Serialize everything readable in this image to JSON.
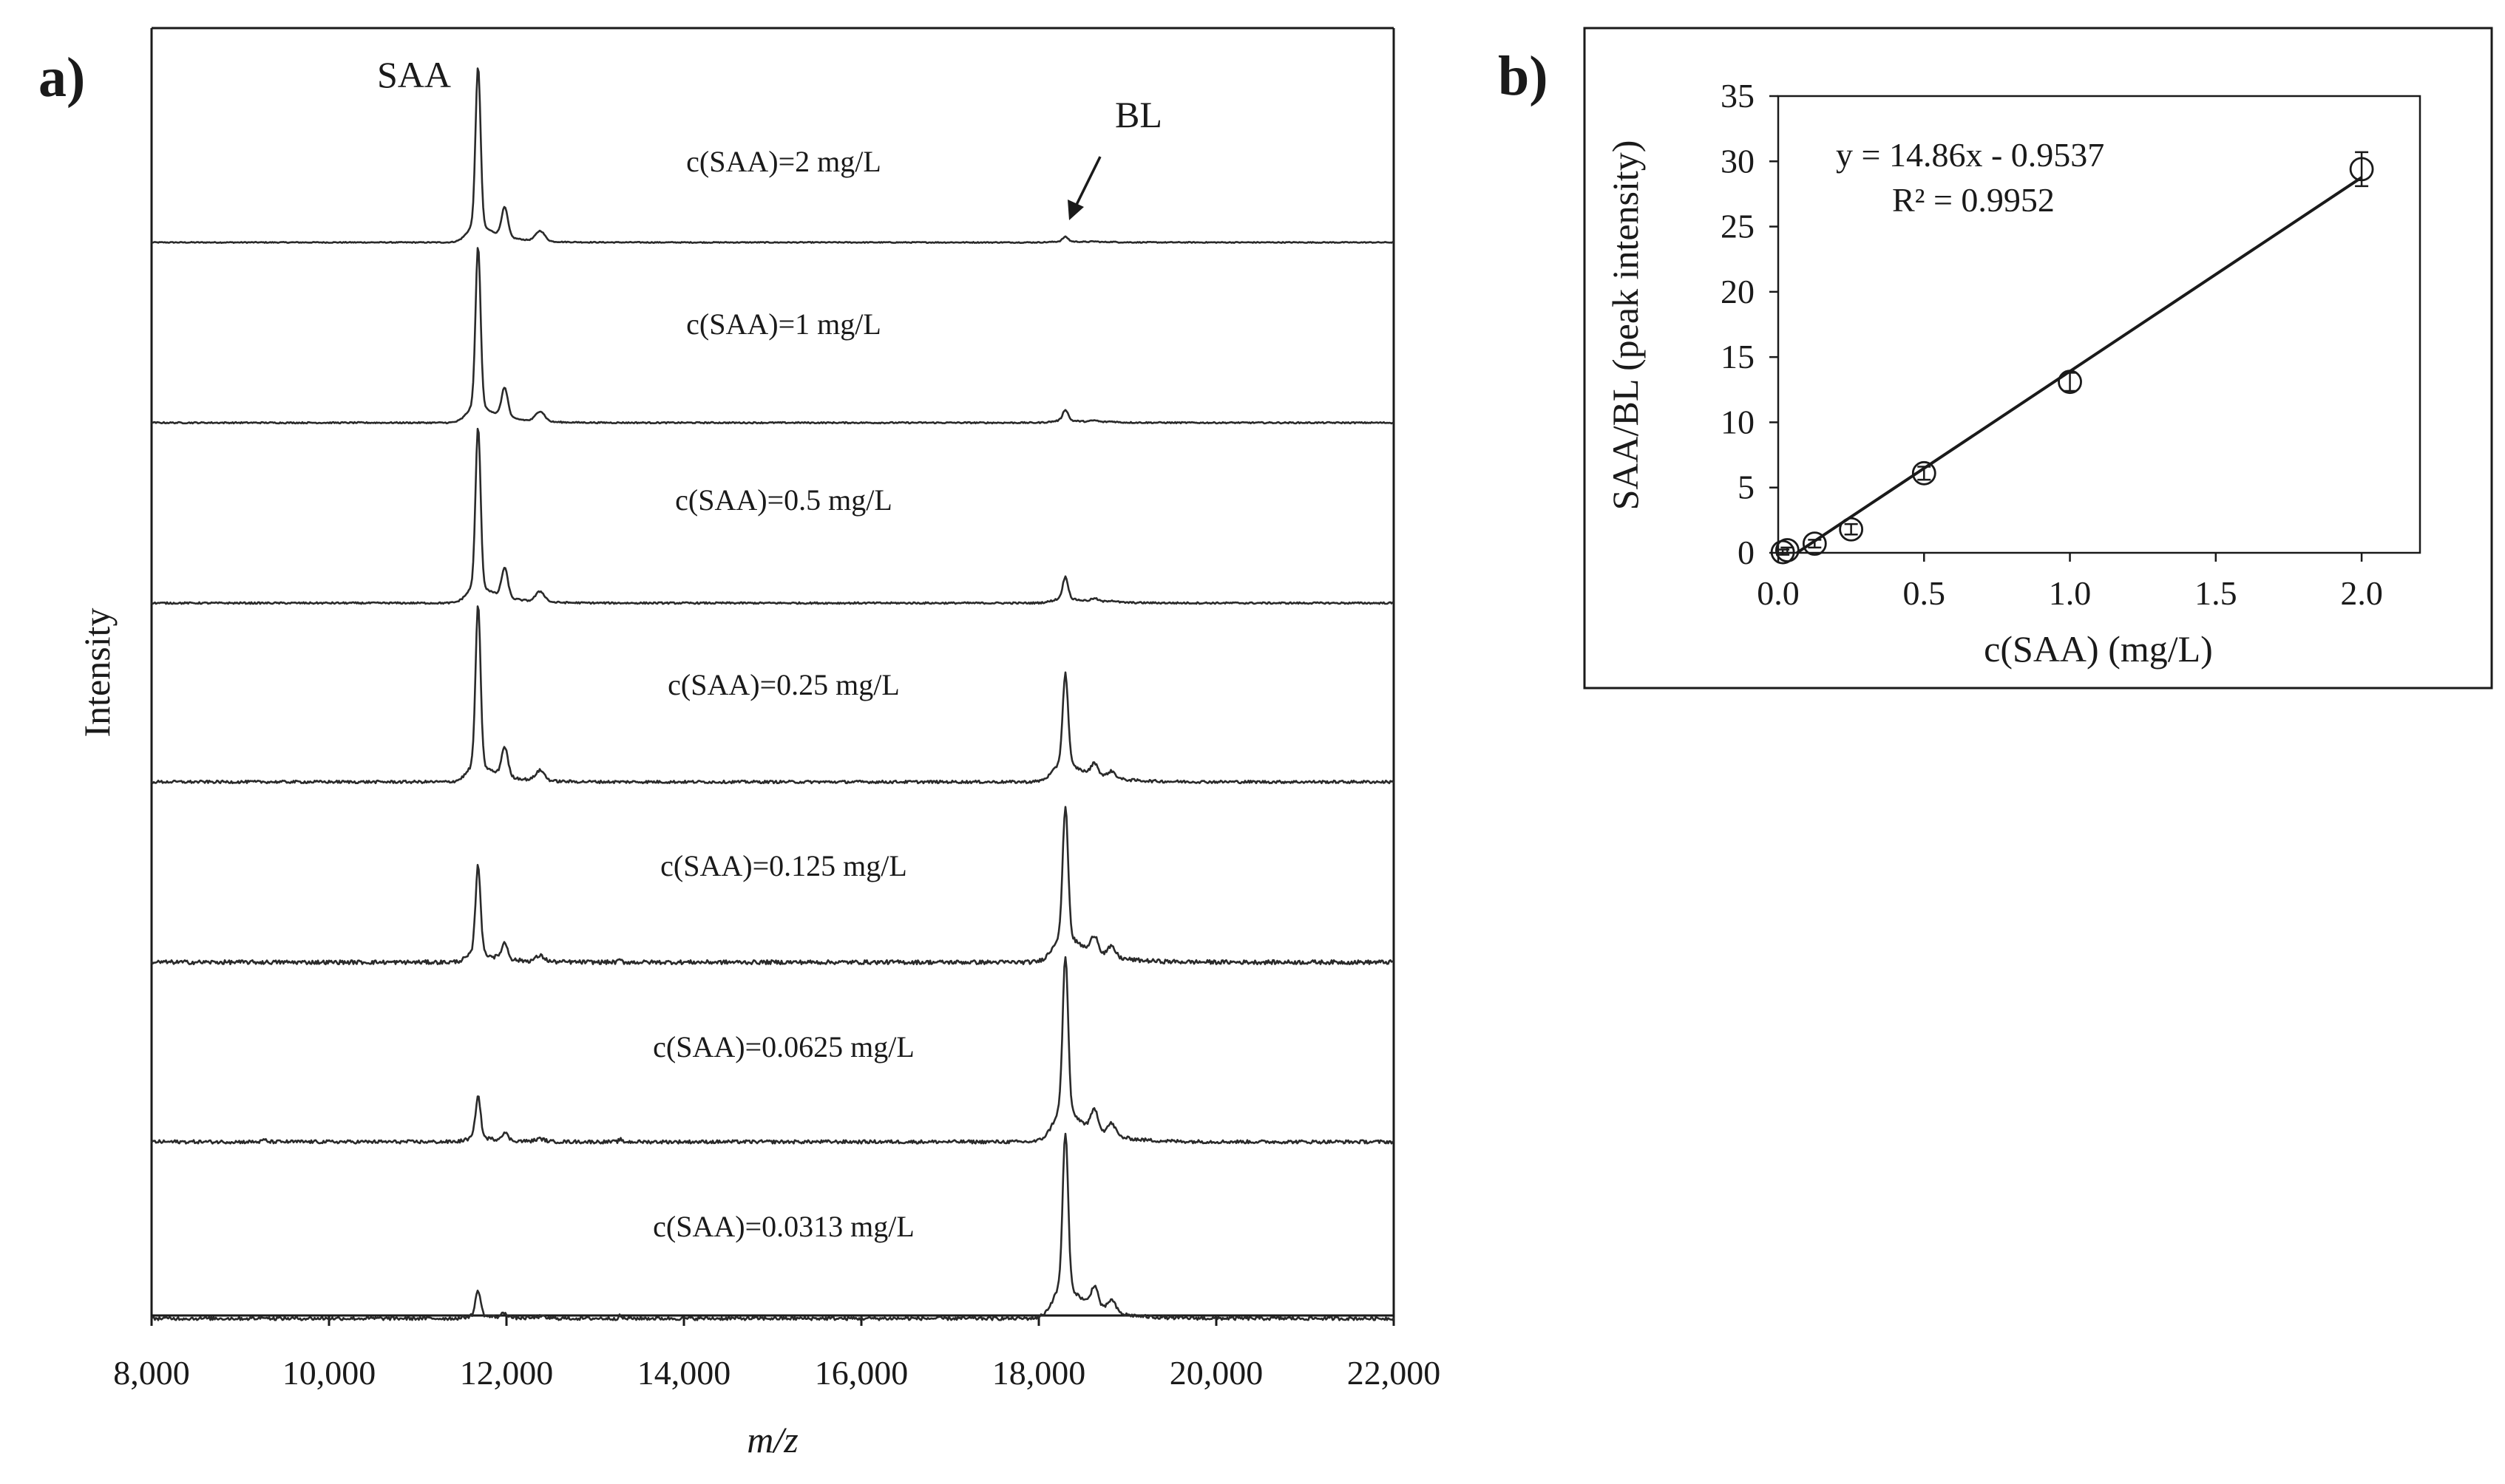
{
  "figure": {
    "panel_a_label": "a)",
    "panel_b_label": "b)"
  },
  "chart_data": [
    {
      "type": "line",
      "panel": "a",
      "title": "",
      "xlabel": "m/z",
      "ylabel": "Intensity",
      "xlim": [
        8000,
        22000
      ],
      "x_ticks": [
        "8,000",
        "10,000",
        "12,000",
        "14,000",
        "16,000",
        "18,000",
        "20,000",
        "22,000"
      ],
      "x_tick_values": [
        8000,
        10000,
        12000,
        14000,
        16000,
        18000,
        20000,
        22000
      ],
      "peak_labels": {
        "saa": "SAA",
        "bl": "BL"
      },
      "peaks": {
        "saa_mz": 11680,
        "bl_mz": 18300
      },
      "series": [
        {
          "name": "c(SAA)=2 mg/L",
          "saa_rel": 1.0,
          "bl_rel": 0.03,
          "noise": 0.003
        },
        {
          "name": "c(SAA)=1 mg/L",
          "saa_rel": 1.0,
          "bl_rel": 0.07,
          "noise": 0.004
        },
        {
          "name": "c(SAA)=0.5 mg/L",
          "saa_rel": 1.0,
          "bl_rel": 0.14,
          "noise": 0.005
        },
        {
          "name": "c(SAA)=0.25 mg/L",
          "saa_rel": 1.0,
          "bl_rel": 0.58,
          "noise": 0.008
        },
        {
          "name": "c(SAA)=0.125 mg/L",
          "saa_rel": 0.55,
          "bl_rel": 0.83,
          "noise": 0.012
        },
        {
          "name": "c(SAA)=0.0625 mg/L",
          "saa_rel": 0.26,
          "bl_rel": 1.0,
          "noise": 0.01
        },
        {
          "name": "c(SAA)=0.0313 mg/L",
          "saa_rel": 0.16,
          "bl_rel": 1.0,
          "noise": 0.01
        }
      ]
    },
    {
      "type": "scatter",
      "panel": "b",
      "title": "",
      "xlabel": "c(SAA) (mg/L)",
      "ylabel": "SAA/BL (peak intensity)",
      "xlim": [
        0,
        2.2
      ],
      "ylim": [
        0,
        35
      ],
      "x_ticks": [
        "0.0",
        "0.5",
        "1.0",
        "1.5",
        "2.0"
      ],
      "x_tick_values": [
        0,
        0.5,
        1.0,
        1.5,
        2.0
      ],
      "y_ticks": [
        "0",
        "5",
        "10",
        "15",
        "20",
        "25",
        "30",
        "35"
      ],
      "y_tick_values": [
        0,
        5,
        10,
        15,
        20,
        25,
        30,
        35
      ],
      "points": [
        {
          "x": 0.0156,
          "y": 0.05,
          "err": 0.2
        },
        {
          "x": 0.0313,
          "y": 0.2,
          "err": 0.2
        },
        {
          "x": 0.125,
          "y": 0.7,
          "err": 0.3
        },
        {
          "x": 0.25,
          "y": 1.8,
          "err": 0.4
        },
        {
          "x": 0.5,
          "y": 6.1,
          "err": 0.5
        },
        {
          "x": 1.0,
          "y": 13.1,
          "err": 0.7
        },
        {
          "x": 2.0,
          "y": 29.4,
          "err": 1.3
        }
      ],
      "fit": {
        "slope": 14.86,
        "intercept": -0.9537,
        "x_range": [
          0.0642,
          2.0
        ]
      },
      "equation": "y = 14.86x - 0.9537",
      "r_squared": "R² = 0.9952"
    }
  ]
}
